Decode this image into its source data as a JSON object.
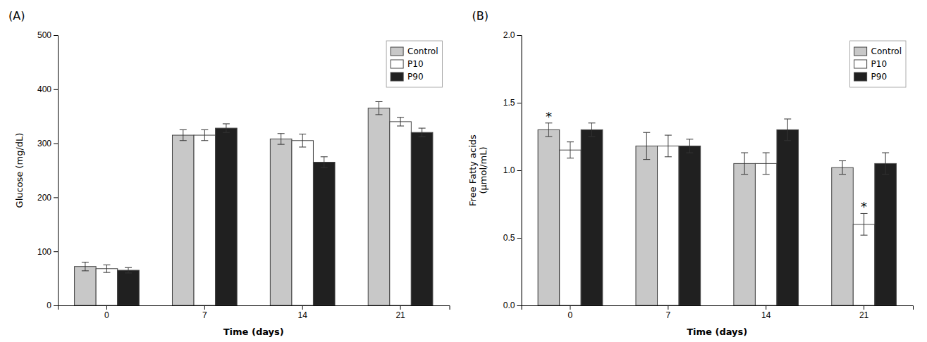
{
  "chart_data": [
    {
      "type": "bar",
      "title": "(A)",
      "xlabel": "Time (days)",
      "ylabel": "Glucose (mg/dL)",
      "categories": [
        "0",
        "7",
        "14",
        "21"
      ],
      "series": [
        {
          "name": "Control",
          "color": "#c8c8c8",
          "values": [
            72,
            315,
            308,
            365
          ],
          "errors": [
            8,
            10,
            10,
            12
          ]
        },
        {
          "name": "P10",
          "color": "#ffffff",
          "values": [
            68,
            315,
            305,
            340
          ],
          "errors": [
            7,
            10,
            12,
            8
          ]
        },
        {
          "name": "P90",
          "color": "#202020",
          "values": [
            65,
            328,
            265,
            320
          ],
          "errors": [
            5,
            8,
            10,
            8
          ]
        }
      ],
      "ylim": [
        0,
        500
      ],
      "yticks": [
        0,
        100,
        200,
        300,
        400,
        500
      ],
      "grid": false,
      "legend": "upper right"
    },
    {
      "type": "bar",
      "title": "(B)",
      "xlabel": "Time (days)",
      "ylabel": "Free Fatty acids\n(μmol/mL)",
      "categories": [
        "0",
        "7",
        "14",
        "21"
      ],
      "series": [
        {
          "name": "Control",
          "color": "#c8c8c8",
          "values": [
            1.3,
            1.18,
            1.05,
            1.02
          ],
          "errors": [
            0.05,
            0.1,
            0.08,
            0.05
          ]
        },
        {
          "name": "P10",
          "color": "#ffffff",
          "values": [
            1.15,
            1.18,
            1.05,
            0.6
          ],
          "errors": [
            0.06,
            0.08,
            0.08,
            0.08
          ]
        },
        {
          "name": "P90",
          "color": "#202020",
          "values": [
            1.3,
            1.18,
            1.3,
            1.05
          ],
          "errors": [
            0.05,
            0.05,
            0.08,
            0.08
          ]
        }
      ],
      "ylim": [
        0.0,
        2.0
      ],
      "yticks": [
        {
          "value": 0,
          "label": "0.0"
        },
        0.5,
        {
          "value": 1,
          "label": "1.0"
        },
        1.5,
        {
          "value": 2,
          "label": "2.0"
        }
      ],
      "grid": false,
      "legend": "upper right",
      "annotations": [
        {
          "text": "*",
          "series": "P10",
          "category": "21"
        },
        {
          "text": "*",
          "series": "Control",
          "category": "0"
        }
      ]
    }
  ]
}
